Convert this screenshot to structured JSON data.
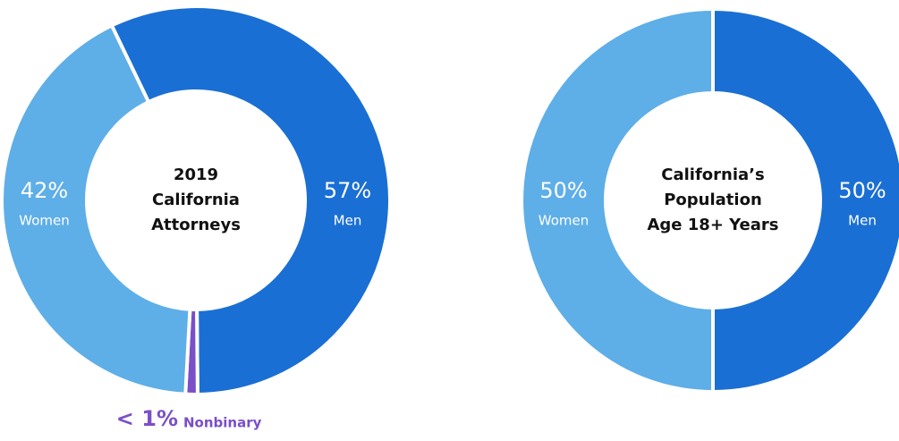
{
  "chart_data": [
    {
      "type": "donut",
      "title": [
        "2019",
        "California",
        "Attorneys"
      ],
      "categories": [
        "Men",
        "Nonbinary",
        "Women"
      ],
      "values": [
        57,
        1,
        42
      ],
      "value_labels": [
        "57%",
        "< 1%",
        "42%"
      ],
      "colors": [
        "#1a6fd4",
        "#7a4fc7",
        "#5eaee8"
      ]
    },
    {
      "type": "donut",
      "title": [
        "California’s",
        "Population",
        "Age 18+ Years"
      ],
      "categories": [
        "Men",
        "Women"
      ],
      "values": [
        50,
        50
      ],
      "value_labels": [
        "50%",
        "50%"
      ],
      "colors": [
        "#1a6fd4",
        "#5eaee8"
      ]
    }
  ]
}
